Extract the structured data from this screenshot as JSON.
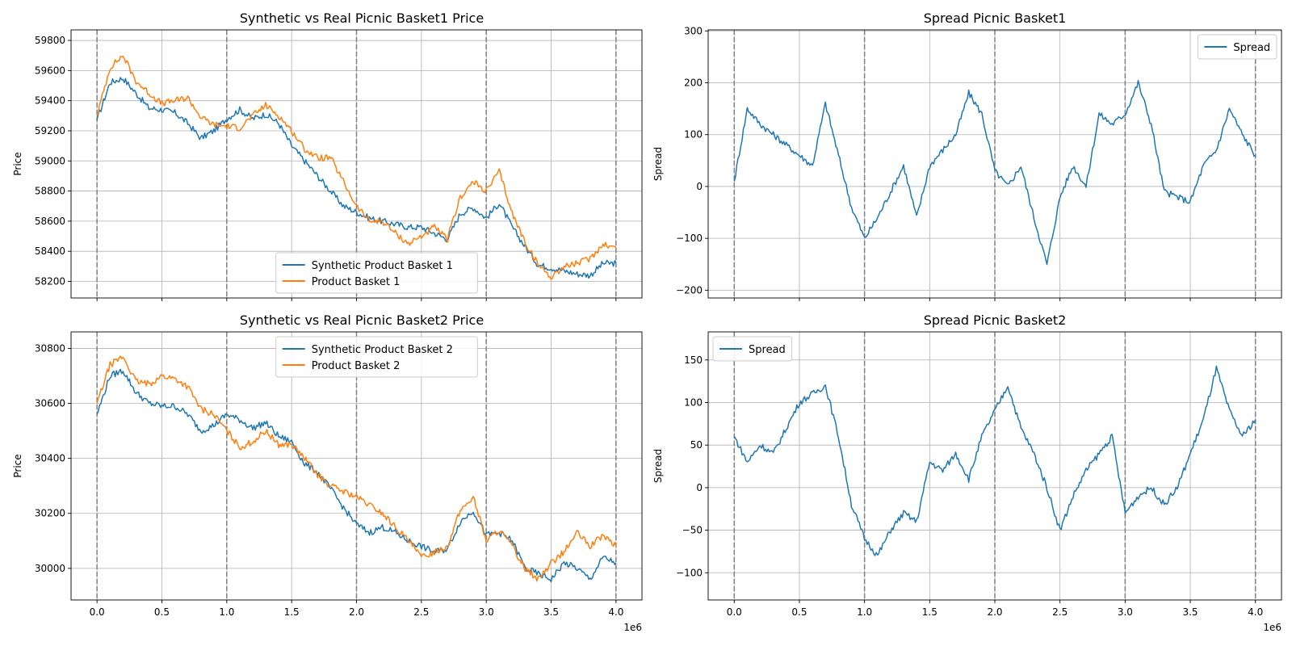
{
  "chart_data": [
    {
      "id": "p0",
      "type": "line",
      "title": "Synthetic vs Real Picnic Basket1 Price",
      "xlabel": "",
      "ylabel": "Price",
      "xlim": [
        -200000,
        4200000
      ],
      "ylim": [
        58090,
        59870
      ],
      "xticks": [
        0,
        500000,
        1000000,
        1500000,
        2000000,
        2500000,
        3000000,
        3500000,
        4000000
      ],
      "xtick_labels": [],
      "x_offset_label": "",
      "yticks": [
        58200,
        58400,
        58600,
        58800,
        59000,
        59200,
        59400,
        59600,
        59800
      ],
      "ytick_labels": [
        "58200",
        "58400",
        "58600",
        "58800",
        "59000",
        "59200",
        "59400",
        "59600",
        "59800"
      ],
      "grid": true,
      "vlines": [
        0,
        1000000,
        2000000,
        3000000,
        4000000
      ],
      "legend": "lower-center",
      "x": [
        0,
        100000,
        200000,
        300000,
        400000,
        500000,
        600000,
        700000,
        800000,
        900000,
        1000000,
        1100000,
        1200000,
        1300000,
        1400000,
        1500000,
        1600000,
        1700000,
        1800000,
        1900000,
        2000000,
        2100000,
        2200000,
        2300000,
        2400000,
        2500000,
        2600000,
        2700000,
        2800000,
        2900000,
        3000000,
        3100000,
        3200000,
        3300000,
        3400000,
        3500000,
        3600000,
        3700000,
        3800000,
        3900000,
        4000000
      ],
      "series": [
        {
          "name": "Synthetic Product Basket 1",
          "color": "#1f77b4",
          "values": [
            59270,
            59520,
            59550,
            59450,
            59350,
            59340,
            59320,
            59250,
            59150,
            59200,
            59280,
            59340,
            59280,
            59310,
            59250,
            59100,
            59000,
            58900,
            58800,
            58700,
            58660,
            58620,
            58600,
            58580,
            58560,
            58560,
            58520,
            58480,
            58650,
            58690,
            58620,
            58720,
            58560,
            58430,
            58310,
            58290,
            58270,
            58250,
            58240,
            58320,
            58320
          ]
        },
        {
          "name": "Product Basket 1",
          "color": "#ff7f0e",
          "values": [
            59300,
            59620,
            59700,
            59530,
            59450,
            59380,
            59400,
            59420,
            59290,
            59240,
            59230,
            59220,
            59300,
            59370,
            59300,
            59200,
            59080,
            59020,
            59020,
            58860,
            58700,
            58600,
            58600,
            58520,
            58450,
            58500,
            58560,
            58480,
            58760,
            58860,
            58800,
            58930,
            58650,
            58460,
            58310,
            58230,
            58300,
            58320,
            58350,
            58450,
            58420
          ]
        }
      ]
    },
    {
      "id": "p1",
      "type": "line",
      "title": "Spread Picnic Basket1",
      "xlabel": "",
      "ylabel": "Spread",
      "xlim": [
        -200000,
        4200000
      ],
      "ylim": [
        -215,
        302
      ],
      "xticks": [
        0,
        500000,
        1000000,
        1500000,
        2000000,
        2500000,
        3000000,
        3500000,
        4000000
      ],
      "xtick_labels": [],
      "x_offset_label": "",
      "yticks": [
        -200,
        -100,
        0,
        100,
        200,
        300
      ],
      "ytick_labels": [
        "−200",
        "−100",
        "0",
        "100",
        "200",
        "300"
      ],
      "grid": true,
      "vlines": [
        0,
        1000000,
        2000000,
        3000000,
        4000000
      ],
      "legend": "top-right",
      "x": [
        0,
        100000,
        200000,
        300000,
        400000,
        500000,
        600000,
        700000,
        800000,
        900000,
        1000000,
        1100000,
        1200000,
        1300000,
        1400000,
        1500000,
        1600000,
        1700000,
        1800000,
        1900000,
        2000000,
        2100000,
        2200000,
        2300000,
        2400000,
        2500000,
        2600000,
        2700000,
        2800000,
        2900000,
        3000000,
        3100000,
        3200000,
        3300000,
        3400000,
        3500000,
        3600000,
        3700000,
        3800000,
        3900000,
        4000000
      ],
      "series": [
        {
          "name": "Spread",
          "color": "#1f77b4",
          "values": [
            10,
            150,
            120,
            100,
            80,
            60,
            40,
            160,
            60,
            -40,
            -100,
            -60,
            -10,
            40,
            -60,
            40,
            70,
            100,
            180,
            140,
            30,
            0,
            40,
            -60,
            -150,
            -20,
            40,
            0,
            140,
            120,
            140,
            200,
            120,
            -10,
            -20,
            -30,
            40,
            70,
            150,
            100,
            60
          ]
        }
      ]
    },
    {
      "id": "p2",
      "type": "line",
      "title": "Synthetic vs Real Picnic Basket2 Price",
      "xlabel": "",
      "ylabel": "Price",
      "xlim": [
        -200000,
        4200000
      ],
      "ylim": [
        29885,
        30860
      ],
      "xticks": [
        0,
        500000,
        1000000,
        1500000,
        2000000,
        2500000,
        3000000,
        3500000,
        4000000
      ],
      "xtick_labels": [
        "0.0",
        "0.5",
        "1.0",
        "1.5",
        "2.0",
        "2.5",
        "3.0",
        "3.5",
        "4.0"
      ],
      "x_offset_label": "1e6",
      "yticks": [
        30000,
        30200,
        30400,
        30600,
        30800
      ],
      "ytick_labels": [
        "30000",
        "30200",
        "30400",
        "30600",
        "30800"
      ],
      "grid": true,
      "vlines": [
        0,
        1000000,
        2000000,
        3000000,
        4000000
      ],
      "legend": "upper-center",
      "x": [
        0,
        100000,
        200000,
        300000,
        400000,
        500000,
        600000,
        700000,
        800000,
        900000,
        1000000,
        1100000,
        1200000,
        1300000,
        1400000,
        1500000,
        1600000,
        1700000,
        1800000,
        1900000,
        2000000,
        2100000,
        2200000,
        2300000,
        2400000,
        2500000,
        2600000,
        2700000,
        2800000,
        2900000,
        3000000,
        3100000,
        3200000,
        3300000,
        3400000,
        3500000,
        3600000,
        3700000,
        3800000,
        3900000,
        4000000
      ],
      "series": [
        {
          "name": "Synthetic Product Basket 2",
          "color": "#1f77b4",
          "values": [
            30560,
            30700,
            30720,
            30640,
            30600,
            30590,
            30590,
            30560,
            30500,
            30520,
            30560,
            30540,
            30510,
            30530,
            30480,
            30460,
            30380,
            30350,
            30290,
            30220,
            30160,
            30130,
            30150,
            30130,
            30100,
            30080,
            30060,
            30070,
            30170,
            30210,
            30120,
            30130,
            30100,
            30000,
            29980,
            29960,
            30020,
            30000,
            29960,
            30040,
            30020
          ]
        },
        {
          "name": "Product Basket 2",
          "color": "#ff7f0e",
          "values": [
            30600,
            30740,
            30770,
            30680,
            30670,
            30700,
            30690,
            30660,
            30580,
            30560,
            30500,
            30440,
            30460,
            30500,
            30450,
            30450,
            30400,
            30340,
            30300,
            30280,
            30260,
            30230,
            30200,
            30150,
            30100,
            30040,
            30060,
            30080,
            30210,
            30260,
            30100,
            30140,
            30080,
            30000,
            29960,
            30020,
            30060,
            30130,
            30080,
            30120,
            30080
          ]
        }
      ]
    },
    {
      "id": "p3",
      "type": "line",
      "title": "Spread Picnic Basket2",
      "xlabel": "",
      "ylabel": "Spread",
      "xlim": [
        -200000,
        4200000
      ],
      "ylim": [
        -132,
        183
      ],
      "xticks": [
        0,
        500000,
        1000000,
        1500000,
        2000000,
        2500000,
        3000000,
        3500000,
        4000000
      ],
      "xtick_labels": [
        "0.0",
        "0.5",
        "1.0",
        "1.5",
        "2.0",
        "2.5",
        "3.0",
        "3.5",
        "4.0"
      ],
      "x_offset_label": "1e6",
      "yticks": [
        -100,
        -50,
        0,
        50,
        100,
        150
      ],
      "ytick_labels": [
        "−100",
        "−50",
        "0",
        "50",
        "100",
        "150"
      ],
      "grid": true,
      "vlines": [
        0,
        1000000,
        2000000,
        3000000,
        4000000
      ],
      "legend": "top-left",
      "x": [
        0,
        100000,
        200000,
        300000,
        400000,
        500000,
        600000,
        700000,
        800000,
        900000,
        1000000,
        1100000,
        1200000,
        1300000,
        1400000,
        1500000,
        1600000,
        1700000,
        1800000,
        1900000,
        2000000,
        2100000,
        2200000,
        2300000,
        2400000,
        2500000,
        2600000,
        2700000,
        2800000,
        2900000,
        3000000,
        3100000,
        3200000,
        3300000,
        3400000,
        3500000,
        3600000,
        3700000,
        3800000,
        3900000,
        4000000
      ],
      "series": [
        {
          "name": "Spread",
          "color": "#1f77b4",
          "values": [
            60,
            30,
            50,
            40,
            70,
            100,
            110,
            120,
            60,
            -20,
            -60,
            -80,
            -50,
            -30,
            -40,
            30,
            20,
            40,
            10,
            60,
            90,
            120,
            70,
            40,
            0,
            -50,
            -10,
            20,
            40,
            60,
            -30,
            -10,
            0,
            -20,
            0,
            40,
            80,
            140,
            90,
            60,
            80
          ]
        }
      ]
    }
  ]
}
